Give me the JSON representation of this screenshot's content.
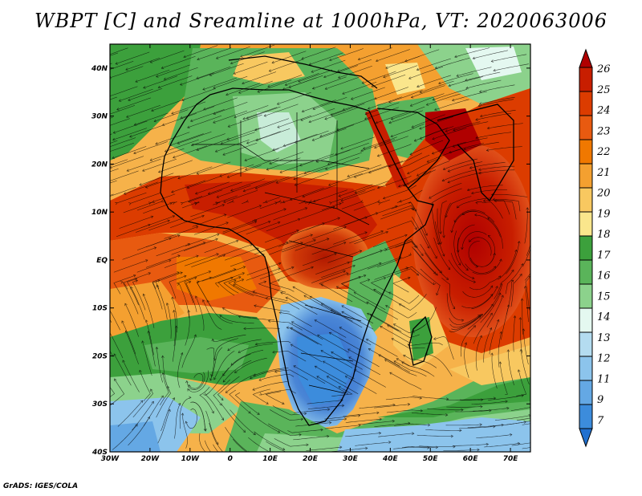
{
  "title": "WBPT [C] and Sreamline at 1000hPa, VT: 2020063006",
  "footer": "GrADS: IGES/COLA",
  "map": {
    "lon_labels": [
      "30W",
      "20W",
      "10W",
      "0",
      "10E",
      "20E",
      "30E",
      "40E",
      "50E",
      "60E",
      "70E"
    ],
    "lat_labels": [
      "40N",
      "30N",
      "20N",
      "10N",
      "EQ",
      "10S",
      "20S",
      "30S",
      "40S"
    ],
    "lon_range": [
      -30,
      75
    ],
    "lat_range": [
      -40,
      45
    ],
    "field": "wet-bulb potential temperature",
    "overlay": "streamlines"
  },
  "colorbar": {
    "levels": [
      "26",
      "25",
      "24",
      "23",
      "22",
      "21",
      "20",
      "19",
      "18",
      "17",
      "16",
      "15",
      "14",
      "13",
      "12",
      "11",
      "9",
      "7"
    ],
    "colors": [
      "#b00000",
      "#c81e00",
      "#dc3c00",
      "#e85a10",
      "#f07800",
      "#f4a030",
      "#f8c860",
      "#fae68c",
      "#3ca03c",
      "#5ab45a",
      "#8cd28c",
      "#e4f8f0",
      "#b4dcf0",
      "#8cc4ec",
      "#64a8e4",
      "#3c8cdc",
      "#2070d0"
    ]
  }
}
